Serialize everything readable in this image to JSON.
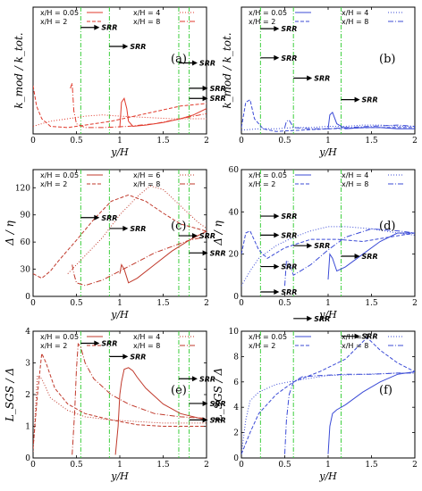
{
  "chart_data": [
    {
      "id": "a",
      "type": "line",
      "label": "(a)",
      "xlabel": "y/H",
      "ylabel": "k_mod / k_tot.",
      "xlim": [
        0,
        2
      ],
      "ylim": [
        0,
        1
      ],
      "xticks": [
        "0",
        "0.5",
        "1",
        "1.5",
        "2"
      ],
      "yticks": [],
      "legend": [
        "x/H = 0.05",
        "x/H = 2",
        "x/H = 4",
        "x/H = 8"
      ],
      "color": "#e0392b",
      "vlines": [
        0.55,
        0.88,
        1.68,
        1.8
      ],
      "srr": [
        {
          "x": 0.55,
          "y": 0.84
        },
        {
          "x": 0.88,
          "y": 0.69
        },
        {
          "x": 1.68,
          "y": 0.56
        },
        {
          "x": 1.8,
          "y": 0.36
        },
        {
          "x": 1.8,
          "y": 0.28
        }
      ],
      "series": [
        {
          "style": "solid",
          "x": [
            1.0,
            1.02,
            1.05,
            1.08,
            1.1,
            1.15,
            1.3,
            1.5,
            1.7,
            1.85,
            2.0
          ],
          "y": [
            0.05,
            0.25,
            0.28,
            0.2,
            0.1,
            0.06,
            0.07,
            0.09,
            0.12,
            0.15,
            0.2
          ]
        },
        {
          "style": "dashed",
          "x": [
            0,
            0.04,
            0.1,
            0.2,
            0.4,
            0.6,
            0.9,
            1.3,
            1.7,
            2.0
          ],
          "y": [
            0.38,
            0.22,
            0.12,
            0.06,
            0.05,
            0.07,
            0.1,
            0.16,
            0.22,
            0.24
          ]
        },
        {
          "style": "dotted",
          "x": [
            0,
            0.1,
            0.2,
            0.4,
            0.6,
            0.8,
            1.0,
            1.3,
            1.6,
            2.0
          ],
          "y": [
            0.06,
            0.08,
            0.1,
            0.12,
            0.14,
            0.15,
            0.14,
            0.13,
            0.12,
            0.12
          ]
        },
        {
          "style": "dashdot",
          "x": [
            0.43,
            0.45,
            0.47,
            0.5,
            0.6,
            0.8,
            1.1,
            1.4,
            1.7,
            2.0
          ],
          "y": [
            0.36,
            0.4,
            0.18,
            0.08,
            0.05,
            0.05,
            0.06,
            0.08,
            0.12,
            0.16
          ]
        }
      ]
    },
    {
      "id": "b",
      "type": "line",
      "label": "(b)",
      "xlabel": "y/H",
      "ylabel": "k_mod / k_tot.",
      "xlim": [
        0,
        2
      ],
      "ylim": [
        0,
        1
      ],
      "xticks": [
        "0",
        "0.5",
        "1",
        "1.5",
        "2"
      ],
      "yticks": [],
      "legend": [
        "x/H = 0.05",
        "x/H = 2",
        "x/H = 4",
        "x/H = 8"
      ],
      "color": "#3b4bd6",
      "vlines": [
        0.22,
        0.6,
        1.15
      ],
      "srr": [
        {
          "x": 0.22,
          "y": 0.83
        },
        {
          "x": 0.22,
          "y": 0.6
        },
        {
          "x": 0.6,
          "y": 0.44
        },
        {
          "x": 1.15,
          "y": 0.27
        }
      ],
      "series": [
        {
          "style": "solid",
          "x": [
            1.0,
            1.02,
            1.05,
            1.1,
            1.2,
            1.4,
            1.6,
            1.8,
            2.0
          ],
          "y": [
            0.04,
            0.15,
            0.17,
            0.08,
            0.04,
            0.05,
            0.05,
            0.04,
            0.04
          ]
        },
        {
          "style": "dashed",
          "x": [
            0,
            0.05,
            0.1,
            0.15,
            0.25,
            0.4,
            0.7,
            1.0,
            1.5,
            2.0
          ],
          "y": [
            0.05,
            0.25,
            0.27,
            0.12,
            0.04,
            0.02,
            0.03,
            0.04,
            0.05,
            0.05
          ]
        },
        {
          "style": "dotted",
          "x": [
            0,
            0.2,
            0.4,
            0.6,
            0.8,
            1.0,
            1.2,
            1.4,
            1.6,
            1.8,
            2.0
          ],
          "y": [
            0.03,
            0.04,
            0.04,
            0.05,
            0.05,
            0.06,
            0.06,
            0.07,
            0.07,
            0.06,
            0.06
          ]
        },
        {
          "style": "dashdot",
          "x": [
            0.5,
            0.52,
            0.55,
            0.6,
            0.8,
            1.0,
            1.2,
            1.5,
            1.8,
            2.0
          ],
          "y": [
            0.05,
            0.1,
            0.11,
            0.05,
            0.04,
            0.04,
            0.05,
            0.06,
            0.07,
            0.06
          ]
        }
      ]
    },
    {
      "id": "c",
      "type": "line",
      "label": "(c)",
      "xlabel": "y/H",
      "ylabel": "Δ / η",
      "xlim": [
        0,
        2
      ],
      "ylim": [
        0,
        140
      ],
      "xticks": [
        "0",
        "0.5",
        "1",
        "1.5",
        "2"
      ],
      "yticks": [
        "0",
        "30",
        "60",
        "90",
        "120"
      ],
      "ytick_values": [
        0,
        30,
        60,
        90,
        120
      ],
      "legend": [
        "x/H = 0.05",
        "x/H = 2",
        "x/H = 6",
        "x/H = 8"
      ],
      "color": "#c0392b",
      "vlines": [
        0.55,
        0.88,
        1.68,
        1.8
      ],
      "srr": [
        {
          "x": 0.55,
          "y": 87
        },
        {
          "x": 0.88,
          "y": 75
        },
        {
          "x": 1.68,
          "y": 67
        },
        {
          "x": 1.8,
          "y": 48
        }
      ],
      "series": [
        {
          "style": "solid",
          "x": [
            1.0,
            1.02,
            1.05,
            1.1,
            1.2,
            1.4,
            1.6,
            1.8,
            2.0
          ],
          "y": [
            25,
            35,
            30,
            15,
            20,
            35,
            50,
            62,
            72
          ]
        },
        {
          "style": "dashed",
          "x": [
            0,
            0.1,
            0.2,
            0.3,
            0.5,
            0.7,
            0.9,
            1.1,
            1.3,
            1.5,
            1.7,
            2.0
          ],
          "y": [
            25,
            20,
            28,
            40,
            62,
            85,
            105,
            112,
            105,
            92,
            80,
            72
          ]
        },
        {
          "style": "dotted",
          "x": [
            0.4,
            0.6,
            0.8,
            1.0,
            1.2,
            1.35,
            1.5,
            1.7,
            1.9,
            2.0
          ],
          "y": [
            25,
            45,
            65,
            90,
            110,
            122,
            118,
            100,
            82,
            75
          ]
        },
        {
          "style": "dashdot",
          "x": [
            0.45,
            0.47,
            0.5,
            0.6,
            0.8,
            1.0,
            1.2,
            1.4,
            1.6,
            1.8,
            2.0
          ],
          "y": [
            35,
            25,
            15,
            12,
            18,
            28,
            38,
            48,
            55,
            62,
            66
          ]
        }
      ]
    },
    {
      "id": "d",
      "type": "line",
      "label": "(d)",
      "xlabel": "y/H",
      "ylabel": "Δ / η",
      "xlim": [
        0,
        2
      ],
      "ylim": [
        0,
        60
      ],
      "xticks": [
        "0",
        "0.5",
        "1",
        "1.5",
        "2"
      ],
      "yticks": [
        "0",
        "20",
        "40",
        "60"
      ],
      "ytick_values": [
        0,
        20,
        40,
        60
      ],
      "legend": [
        "x/H = 0.05",
        "x/H = 2",
        "x/H = 4",
        "x/H = 8"
      ],
      "color": "#3b4bd6",
      "vlines": [
        0.22,
        0.6,
        1.15
      ],
      "srr": [
        {
          "x": 0.22,
          "y": 38
        },
        {
          "x": 0.22,
          "y": 29
        },
        {
          "x": 0.6,
          "y": 24
        },
        {
          "x": 1.15,
          "y": 19
        }
      ],
      "series": [
        {
          "style": "solid",
          "x": [
            1.0,
            1.02,
            1.05,
            1.1,
            1.2,
            1.4,
            1.6,
            1.8,
            2.0
          ],
          "y": [
            8,
            20,
            18,
            12,
            14,
            20,
            26,
            30,
            30
          ]
        },
        {
          "style": "dashed",
          "x": [
            0,
            0.05,
            0.1,
            0.2,
            0.3,
            0.5,
            0.8,
            1.1,
            1.4,
            1.7,
            2.0
          ],
          "y": [
            20,
            30,
            31,
            22,
            18,
            23,
            27,
            27,
            26,
            28,
            30
          ]
        },
        {
          "style": "dotted",
          "x": [
            0,
            0.1,
            0.2,
            0.4,
            0.6,
            0.8,
            1.0,
            1.2,
            1.5,
            1.8,
            2.0
          ],
          "y": [
            5,
            12,
            18,
            24,
            28,
            31,
            33,
            33,
            32,
            30,
            29
          ]
        },
        {
          "style": "dashdot",
          "x": [
            0.5,
            0.52,
            0.55,
            0.6,
            0.8,
            1.0,
            1.2,
            1.5,
            1.8,
            2.0
          ],
          "y": [
            5,
            17,
            16,
            10,
            15,
            22,
            28,
            32,
            31,
            30
          ]
        }
      ]
    },
    {
      "id": "e",
      "type": "line",
      "label": "(e)",
      "xlabel": "y/H",
      "ylabel": "L_SGS / Δ",
      "xlim": [
        0,
        2
      ],
      "ylim": [
        0,
        4
      ],
      "xticks": [
        "0",
        "0.5",
        "1",
        "1.5",
        "2"
      ],
      "yticks": [
        "0",
        "1",
        "2",
        "3",
        "4"
      ],
      "ytick_values": [
        0,
        1,
        2,
        3,
        4
      ],
      "legend": [
        "x/H = 0.05",
        "x/H = 2",
        "x/H = 4",
        "x/H = 8"
      ],
      "color": "#c0392b",
      "vlines": [
        0.55,
        0.88,
        1.68,
        1.8
      ],
      "srr": [
        {
          "x": 0.55,
          "y": 3.62
        },
        {
          "x": 0.88,
          "y": 3.2
        },
        {
          "x": 1.68,
          "y": 2.5
        },
        {
          "x": 1.8,
          "y": 1.72
        },
        {
          "x": 1.8,
          "y": 1.2
        }
      ],
      "series": [
        {
          "style": "solid",
          "x": [
            0.95,
            0.98,
            1.0,
            1.02,
            1.05,
            1.1,
            1.15,
            1.2,
            1.3,
            1.5,
            1.7,
            2.0
          ],
          "y": [
            0.1,
            1.0,
            2.0,
            2.4,
            2.8,
            2.85,
            2.75,
            2.55,
            2.2,
            1.7,
            1.4,
            1.2
          ]
        },
        {
          "style": "dashed",
          "x": [
            0,
            0.05,
            0.1,
            0.15,
            0.25,
            0.4,
            0.6,
            0.9,
            1.2,
            1.5,
            1.8,
            2.0
          ],
          "y": [
            0.3,
            2.0,
            3.3,
            3.0,
            2.2,
            1.7,
            1.4,
            1.2,
            1.05,
            1.0,
            1.0,
            1.0
          ]
        },
        {
          "style": "dotted",
          "x": [
            0,
            0.05,
            0.1,
            0.2,
            0.4,
            0.6,
            0.9,
            1.2,
            1.5,
            1.8,
            2.0
          ],
          "y": [
            0.2,
            2.6,
            2.5,
            1.9,
            1.5,
            1.3,
            1.2,
            1.15,
            1.1,
            1.1,
            1.1
          ]
        },
        {
          "style": "dashdot",
          "x": [
            0.45,
            0.48,
            0.5,
            0.52,
            0.55,
            0.6,
            0.7,
            0.9,
            1.1,
            1.4,
            1.7,
            2.0
          ],
          "y": [
            0.1,
            1.5,
            2.8,
            3.6,
            3.5,
            3.0,
            2.5,
            2.0,
            1.7,
            1.4,
            1.3,
            1.25
          ]
        }
      ]
    },
    {
      "id": "f",
      "type": "line",
      "label": "(f)",
      "xlabel": "y/H",
      "ylabel": "L_SGS / Δ",
      "xlim": [
        0,
        2
      ],
      "ylim": [
        0,
        10
      ],
      "xticks": [
        "0",
        "0.5",
        "1",
        "1.5",
        "2"
      ],
      "yticks": [
        "0",
        "2",
        "4",
        "6",
        "8",
        "10"
      ],
      "ytick_values": [
        0,
        2,
        4,
        6,
        8,
        10
      ],
      "legend": [
        "x/H = 0.05",
        "x/H = 2",
        "x/H = 4",
        "x/H = 8"
      ],
      "color": "#3b4bd6",
      "vlines": [
        0.22,
        0.6,
        1.15
      ],
      "srr": [
        {
          "x": 0.22,
          "y": 15.1
        },
        {
          "x": 0.22,
          "y": 13.1
        },
        {
          "x": 0.6,
          "y": 11.0
        },
        {
          "x": 1.15,
          "y": 9.6
        }
      ],
      "series": [
        {
          "style": "solid",
          "x": [
            1.0,
            1.02,
            1.05,
            1.1,
            1.2,
            1.4,
            1.6,
            1.8,
            2.0
          ],
          "y": [
            0.3,
            2.5,
            3.5,
            3.8,
            4.2,
            5.2,
            6.0,
            6.6,
            6.8
          ]
        },
        {
          "style": "dashed",
          "x": [
            0,
            0.1,
            0.2,
            0.4,
            0.6,
            0.9,
            1.2,
            1.45,
            1.6,
            1.8,
            2.0
          ],
          "y": [
            0.3,
            2.0,
            3.5,
            5.0,
            6.0,
            6.8,
            7.8,
            9.5,
            8.5,
            7.5,
            6.8
          ]
        },
        {
          "style": "dotted",
          "x": [
            0,
            0.05,
            0.1,
            0.2,
            0.4,
            0.7,
            1.0,
            1.4,
            1.8,
            2.0
          ],
          "y": [
            0.3,
            3.0,
            4.5,
            5.2,
            5.8,
            6.2,
            6.5,
            6.6,
            6.7,
            6.7
          ]
        },
        {
          "style": "dashdot",
          "x": [
            0.5,
            0.52,
            0.55,
            0.6,
            0.7,
            0.9,
            1.2,
            1.5,
            1.8,
            2.0
          ],
          "y": [
            0.3,
            3.0,
            5.0,
            6.0,
            6.4,
            6.5,
            6.6,
            6.6,
            6.7,
            6.7
          ]
        }
      ]
    }
  ]
}
